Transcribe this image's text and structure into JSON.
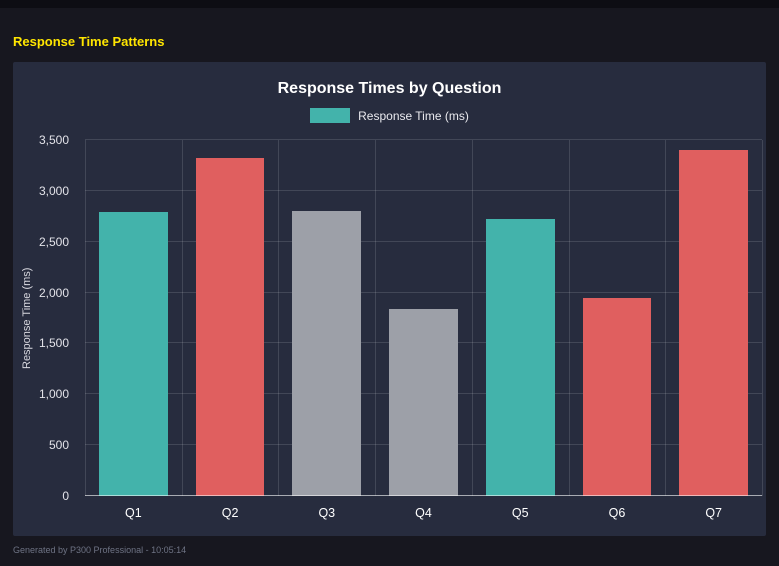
{
  "page": {
    "heading": "Response Time Patterns",
    "footer": "Generated by P300 Professional - 10:05:14"
  },
  "colors": {
    "page_bg": "#17171f",
    "panel_bg": "#272c3e",
    "heading_yellow": "#ffe600",
    "teal": "#43b3ab",
    "red": "#e05f5f",
    "gray": "#9da0a8",
    "grid": "rgba(255,255,255,0.13)"
  },
  "chart_data": {
    "type": "bar",
    "title": "Response Times by Question",
    "legend": [
      {
        "label": "Response Time (ms)",
        "color": "#43b3ab"
      }
    ],
    "legend_position": "top",
    "categories": [
      "Q1",
      "Q2",
      "Q3",
      "Q4",
      "Q5",
      "Q6",
      "Q7"
    ],
    "values": [
      2790,
      3320,
      2800,
      1840,
      2720,
      1950,
      3400
    ],
    "bar_colors": [
      "#43b3ab",
      "#e05f5f",
      "#9da0a8",
      "#9da0a8",
      "#43b3ab",
      "#e05f5f",
      "#e05f5f"
    ],
    "xlabel": "",
    "ylabel": "Response Time (ms)",
    "ylim": [
      0,
      3500
    ],
    "yticks": [
      0,
      500,
      1000,
      1500,
      2000,
      2500,
      3000,
      3500
    ],
    "ytick_labels": [
      "0",
      "500",
      "1,000",
      "1,500",
      "2,000",
      "2,500",
      "3,000",
      "3,500"
    ],
    "grid": true
  }
}
